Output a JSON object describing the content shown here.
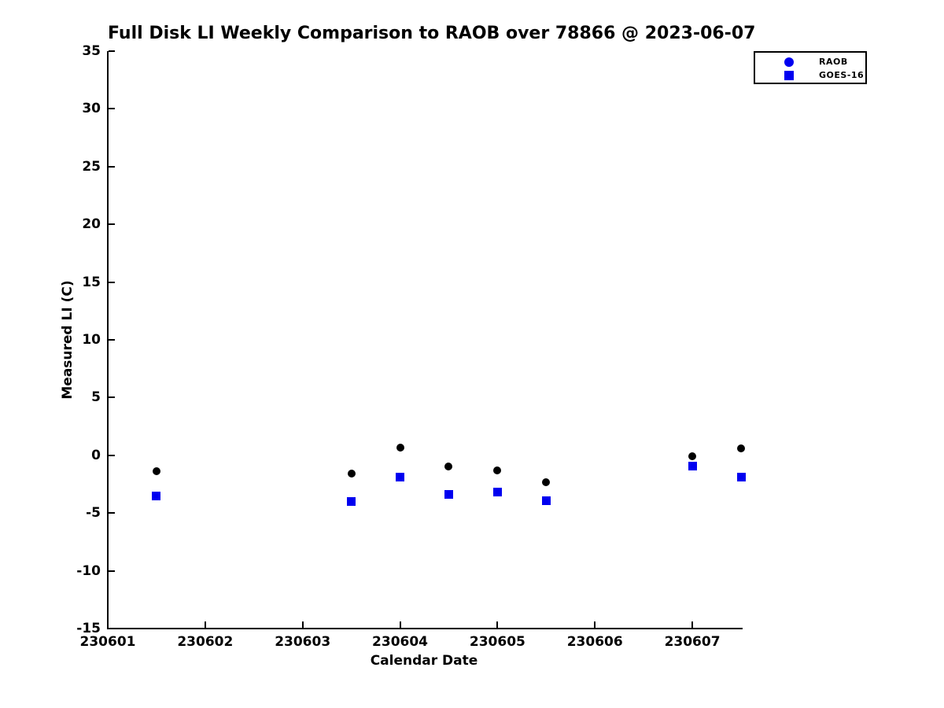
{
  "chart_data": {
    "type": "scatter",
    "title": "Full Disk LI Weekly Comparison to RAOB over 78866 @ 2023-06-07",
    "xlabel": "Calendar Date",
    "ylabel": "Measured LI (C)",
    "x_unit": "days since 230601 (0.5 = 12Z sounding)",
    "xlim": [
      0,
      6.5
    ],
    "ylim": [
      -15,
      35
    ],
    "y_ticks": [
      35,
      30,
      25,
      20,
      15,
      10,
      5,
      0,
      -5,
      -10,
      -15
    ],
    "x_tick_positions": [
      0,
      1,
      2,
      3,
      4,
      5,
      6
    ],
    "x_tick_labels": [
      "230601",
      "230602",
      "230603",
      "230604",
      "230605",
      "230606",
      "230607"
    ],
    "grid": false,
    "legend_position": "top-right",
    "series": [
      {
        "name": "RAOB",
        "marker": "circle",
        "point_color": "#000000",
        "legend_color": "#0000f0",
        "x": [
          0.5,
          2.5,
          3.0,
          3.5,
          4.0,
          4.5,
          6.0,
          6.5
        ],
        "y": [
          -1.4,
          -1.6,
          0.7,
          -1.0,
          -1.3,
          -2.3,
          -0.1,
          0.6
        ]
      },
      {
        "name": "GOES-16",
        "marker": "square",
        "point_color": "#0000f0",
        "legend_color": "#0000f0",
        "x": [
          0.5,
          2.5,
          3.0,
          3.5,
          4.0,
          4.5,
          6.0,
          6.5
        ],
        "y": [
          -3.5,
          -4.0,
          -1.9,
          -3.4,
          -3.2,
          -3.9,
          -0.9,
          -1.9
        ]
      }
    ]
  },
  "colors": {
    "background": "#ffffff",
    "axis": "#000000",
    "text": "#000000",
    "marker_blue": "#0000f0",
    "marker_black": "#000000"
  }
}
